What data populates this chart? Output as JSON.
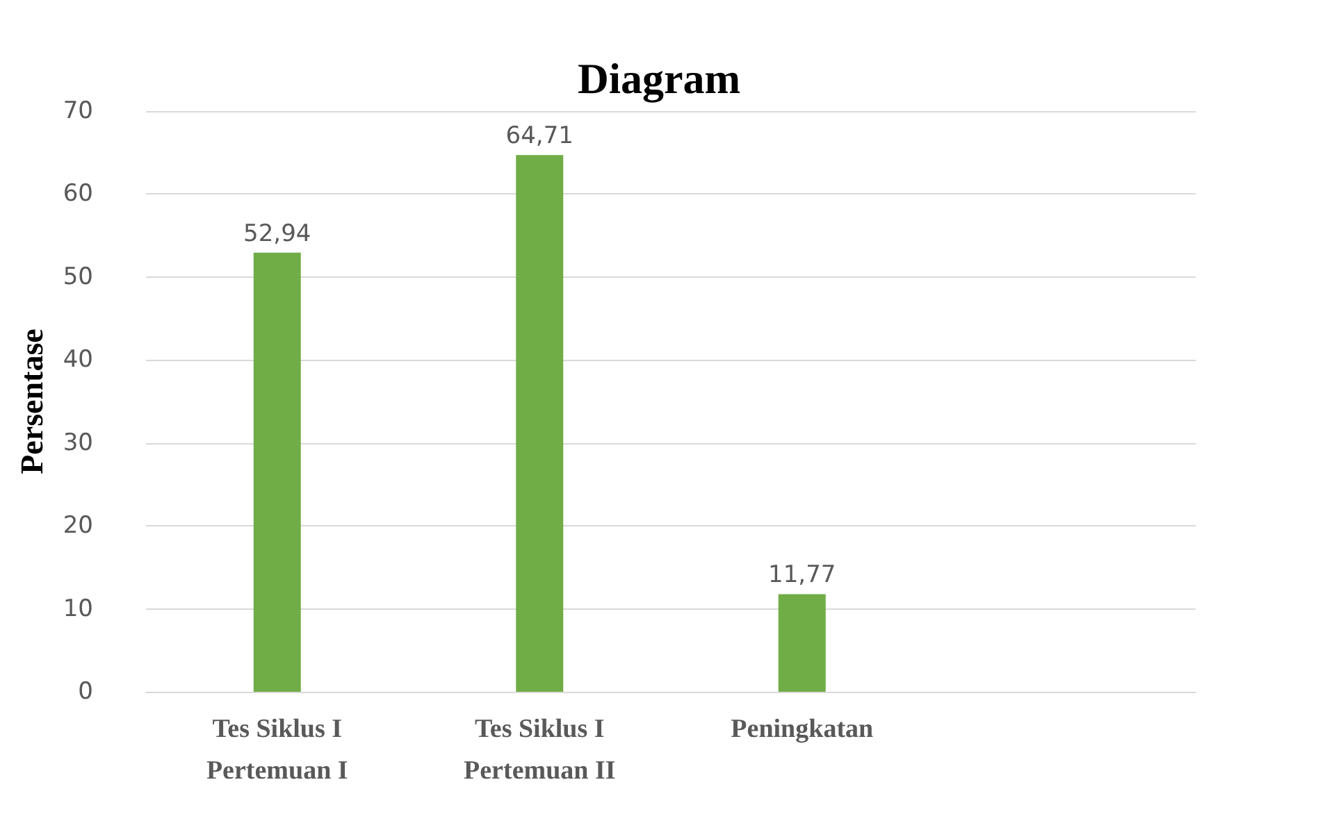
{
  "chart_data": {
    "type": "bar",
    "title": "Diagram",
    "ylabel": "Persentase",
    "categories": [
      "Tes Siklus I\nPertemuan I",
      "Tes Siklus I\nPertemuan II",
      "Peningkatan",
      null
    ],
    "values": [
      52.94,
      64.71,
      11.77,
      null
    ],
    "value_labels": [
      "52,94",
      "64,71",
      "11,77",
      null
    ],
    "color": "#70ad47",
    "ylim": [
      0,
      70
    ],
    "yticks": [
      0,
      10,
      20,
      30,
      40,
      50,
      60,
      70
    ],
    "grid": "y"
  }
}
